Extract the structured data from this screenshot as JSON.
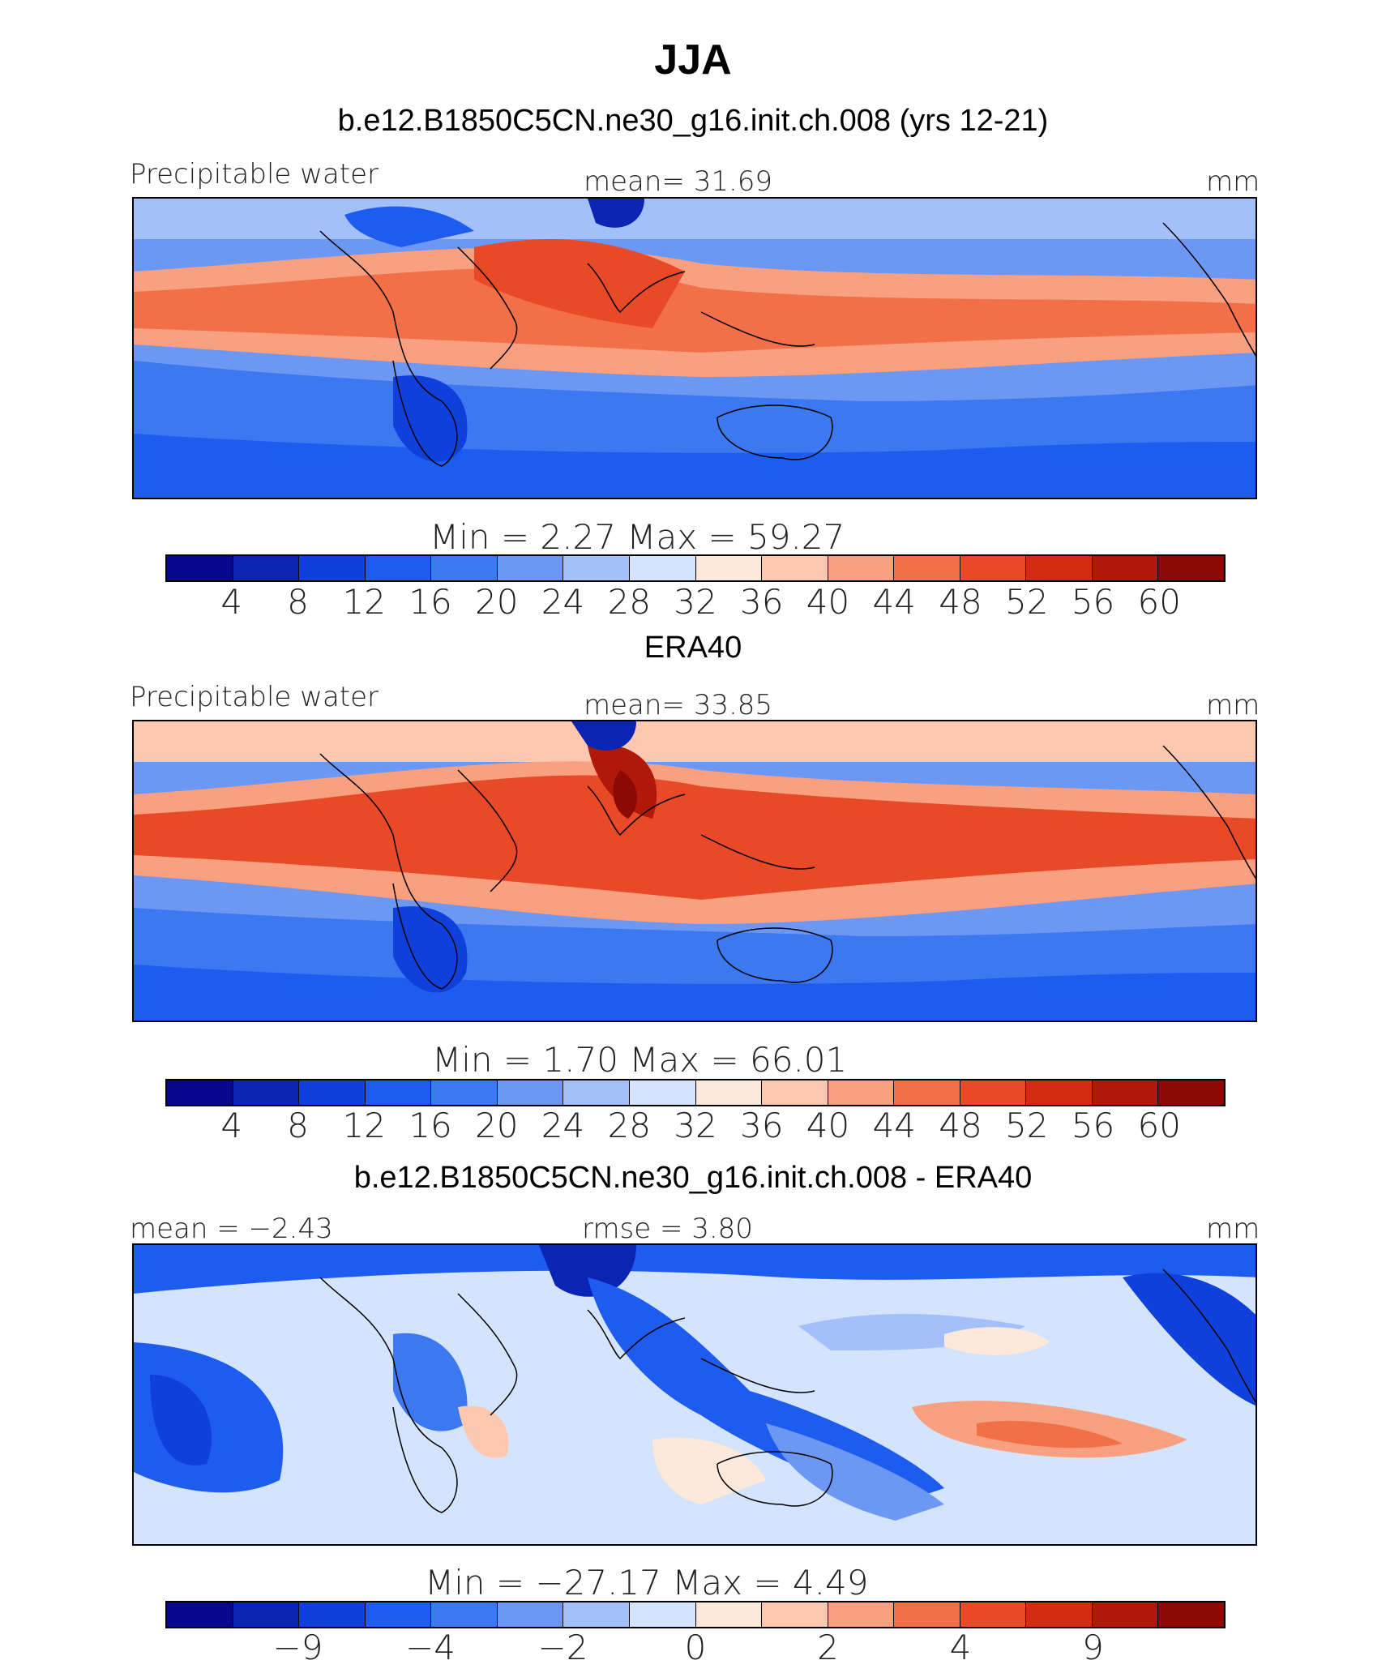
{
  "title": "JJA",
  "colors": [
    "#08088c",
    "#0a24b4",
    "#1040dc",
    "#1e5cf0",
    "#3c78f0",
    "#6c98f4",
    "#a4c0fa",
    "#d4e4fc",
    "#fde9d9",
    "#fcc8b0",
    "#f8a080",
    "#f27048",
    "#e84a28",
    "#d42c10",
    "#b01808",
    "#8c0a04"
  ],
  "panels": [
    {
      "subtitle": "b.e12.B1850C5CN.ne30_g16.init.ch.008 (yrs 12-21)",
      "left_label": "Precipitable water",
      "center_label": "mean=   31.69",
      "right_label": "mm",
      "minmax": "Min  =     2.27  Max  =    59.27",
      "ticks": [
        "4",
        "8",
        "12",
        "16",
        "20",
        "24",
        "28",
        "32",
        "36",
        "40",
        "44",
        "48",
        "52",
        "56",
        "60"
      ]
    },
    {
      "subtitle": "ERA40",
      "left_label": "Precipitable water",
      "center_label": "mean=   33.85",
      "right_label": "mm",
      "minmax": "Min  =     1.70  Max  =    66.01",
      "ticks": [
        "4",
        "8",
        "12",
        "16",
        "20",
        "24",
        "28",
        "32",
        "36",
        "40",
        "44",
        "48",
        "52",
        "56",
        "60"
      ]
    },
    {
      "subtitle": "b.e12.B1850C5CN.ne30_g16.init.ch.008 - ERA40",
      "left_label": "mean =  −2.43",
      "center_label": "rmse =     3.80",
      "right_label": "mm",
      "minmax": "Min  = −27.17  Max  =     4.49",
      "ticks": [
        "−9",
        "−4",
        "−2",
        "0",
        "2",
        "4",
        "9"
      ]
    }
  ]
}
